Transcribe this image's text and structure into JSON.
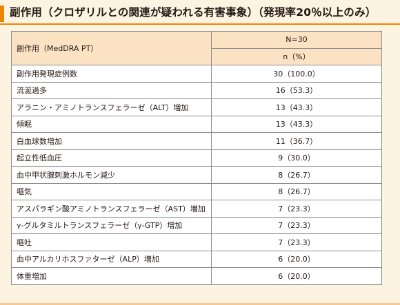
{
  "header": {
    "title": "副作用（クロザリルとの関連が疑われる有害事象）（発現率20％以上のみ）"
  },
  "table": {
    "col_label_header": "副作用（MedDRA PT）",
    "col_n_header": "N=30",
    "col_unit_header": "n（%）",
    "rows": [
      {
        "label": "副作用発現症例数",
        "value": "30（100.0）"
      },
      {
        "label": "流涎過多",
        "value": "16（53.3）"
      },
      {
        "label": "アラニン・アミノトランスフェラーゼ（ALT）増加",
        "value": "13（43.3）"
      },
      {
        "label": "傾眠",
        "value": "13（43.3）"
      },
      {
        "label": "白血球数増加",
        "value": "11（36.7）"
      },
      {
        "label": "起立性低血圧",
        "value": "9（30.0）"
      },
      {
        "label": "血中甲状腺刺激ホルモン減少",
        "value": "8（26.7）"
      },
      {
        "label": "嘔気",
        "value": "8（26.7）"
      },
      {
        "label": "アスパラギン酸アミノトランスフェラーゼ（AST）増加",
        "value": "7（23.3）"
      },
      {
        "label": "γ-グルタミルトランスフェラーゼ（γ-GTP）増加",
        "value": "7（23.3）"
      },
      {
        "label": "嘔吐",
        "value": "7（23.3）"
      },
      {
        "label": "血中アルカリホスファターゼ（ALP）増加",
        "value": "6（20.0）"
      },
      {
        "label": "体重増加",
        "value": "6（20.0）"
      }
    ]
  },
  "colors": {
    "accent": "#f08300",
    "background": "#fdf3e1",
    "header_fill": "#fbe2c3",
    "border": "#8c8c8c"
  }
}
